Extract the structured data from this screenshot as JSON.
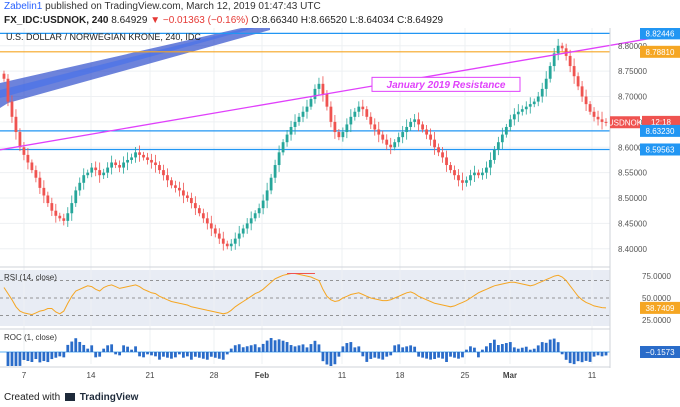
{
  "header": {
    "author": "Zabelin1",
    "published": "published on TradingView.com, March 12, 2019 01:47:43 UTC",
    "symbol": "FX_IDC:USDNOK, 240",
    "last": "8.64929",
    "change": "▼ −0.01363 (−0.16%)",
    "ohlc": "O:8.66340 H:8.66520 L:8.64034 C:8.64929"
  },
  "footer": {
    "created": "Created with",
    "brand": "TradingView"
  },
  "chart_data": [
    {
      "type": "candlestick",
      "title": "U.S. DOLLAR / NORWEGIAN KRONE, 240, IDC",
      "annotation": "January 2019 Resistance",
      "ylim": [
        8.37,
        8.835
      ],
      "y_ticks": [
        "8.40000",
        "8.45000",
        "8.50000",
        "8.55000",
        "8.60000",
        "8.65000",
        "8.70000",
        "8.75000",
        "8.80000"
      ],
      "x_ticks": [
        "7",
        "14",
        "21",
        "28",
        "Feb",
        "11",
        "18",
        "25",
        "Mar",
        "11"
      ],
      "price_labels": [
        {
          "text": "8.82446",
          "value": 8.82446,
          "kind": "level"
        },
        {
          "text": "8.78810",
          "value": 8.7881,
          "kind": "level"
        },
        {
          "text": "USDNOK",
          "value": 8.64929,
          "kind": "last"
        },
        {
          "text": "8.64929",
          "value": 8.64929,
          "kind": "last"
        },
        {
          "text": "12:18",
          "value": 8.6323,
          "kind": "timer"
        },
        {
          "text": "8.63230",
          "value": 8.6323,
          "kind": "level"
        },
        {
          "text": "8.59563",
          "value": 8.59563,
          "kind": "level"
        }
      ],
      "levels": [
        {
          "value": 8.82446,
          "color": "#2196f3"
        },
        {
          "value": 8.7881,
          "color": "#f5a623"
        },
        {
          "value": 8.6323,
          "color": "#2196f3"
        },
        {
          "value": 8.59563,
          "color": "#2196f3"
        }
      ],
      "trendline": {
        "from": [
          0,
          8.595
        ],
        "to": [
          170,
          8.825
        ],
        "color": "#e040fb"
      },
      "close_series": [
        8.735,
        8.69,
        8.66,
        8.63,
        8.6,
        8.585,
        8.57,
        8.555,
        8.54,
        8.52,
        8.505,
        8.49,
        8.475,
        8.465,
        8.46,
        8.455,
        8.47,
        8.49,
        8.515,
        8.53,
        8.545,
        8.55,
        8.56,
        8.555,
        8.545,
        8.55,
        8.56,
        8.57,
        8.565,
        8.56,
        8.57,
        8.575,
        8.58,
        8.59,
        8.585,
        8.58,
        8.575,
        8.57,
        8.565,
        8.555,
        8.545,
        8.535,
        8.525,
        8.52,
        8.515,
        8.505,
        8.5,
        8.49,
        8.48,
        8.47,
        8.46,
        8.45,
        8.44,
        8.43,
        8.42,
        8.41,
        8.405,
        8.41,
        8.42,
        8.43,
        8.44,
        8.45,
        8.46,
        8.47,
        8.48,
        8.495,
        8.515,
        8.54,
        8.565,
        8.59,
        8.61,
        8.625,
        8.64,
        8.65,
        8.66,
        8.67,
        8.68,
        8.695,
        8.715,
        8.725,
        8.705,
        8.68,
        8.65,
        8.63,
        8.62,
        8.63,
        8.645,
        8.66,
        8.67,
        8.68,
        8.675,
        8.66,
        8.645,
        8.635,
        8.625,
        8.615,
        8.605,
        8.6,
        8.61,
        8.62,
        8.63,
        8.64,
        8.65,
        8.655,
        8.645,
        8.635,
        8.625,
        8.615,
        8.6,
        8.59,
        8.58,
        8.565,
        8.555,
        8.545,
        8.535,
        8.53,
        8.535,
        8.545,
        8.55,
        8.545,
        8.55,
        8.56,
        8.575,
        8.595,
        8.61,
        8.625,
        8.64,
        8.655,
        8.665,
        8.67,
        8.675,
        8.68,
        8.685,
        8.69,
        8.7,
        8.715,
        8.735,
        8.76,
        8.785,
        8.8,
        8.795,
        8.78,
        8.76,
        8.74,
        8.72,
        8.7,
        8.685,
        8.67,
        8.66,
        8.655,
        8.65,
        8.649
      ],
      "rsi": {
        "label": "RSI (14, close)",
        "levels": [
          70,
          50,
          30
        ],
        "tick_labels": [
          "75.0000",
          "50.0000",
          "25.0000"
        ],
        "last_label": "38.7409",
        "ylim": [
          18,
          82
        ],
        "values": [
          62,
          55,
          48,
          40,
          35,
          33,
          32,
          31,
          33,
          35,
          36,
          38,
          38,
          34,
          32,
          35,
          44,
          52,
          58,
          60,
          62,
          64,
          63,
          60,
          58,
          62,
          64,
          65,
          63,
          61,
          62,
          63,
          64,
          65,
          63,
          60,
          58,
          56,
          55,
          52,
          50,
          48,
          46,
          45,
          44,
          43,
          42,
          40,
          39,
          38,
          37,
          36,
          35,
          34,
          33,
          32,
          33,
          36,
          40,
          43,
          46,
          49,
          52,
          55,
          57,
          60,
          64,
          68,
          72,
          74,
          76,
          77,
          78,
          78,
          77,
          76,
          75,
          74,
          72,
          70,
          60,
          52,
          48,
          46,
          47,
          50,
          52,
          54,
          55,
          56,
          54,
          52,
          50,
          49,
          48,
          47,
          47,
          48,
          50,
          52,
          54,
          56,
          57,
          55,
          52,
          50,
          48,
          46,
          44,
          43,
          42,
          41,
          40,
          41,
          43,
          45,
          47,
          50,
          53,
          56,
          58,
          60,
          62,
          64,
          65,
          66,
          67,
          68,
          68,
          67,
          66,
          65,
          64,
          65,
          67,
          69,
          71,
          73,
          75,
          76,
          74,
          70,
          64,
          58,
          52,
          48,
          45,
          43,
          41,
          40,
          39,
          38.7
        ]
      },
      "roc": {
        "label": "ROC (1, close)",
        "last_label": "−0.1573"
      }
    }
  ]
}
